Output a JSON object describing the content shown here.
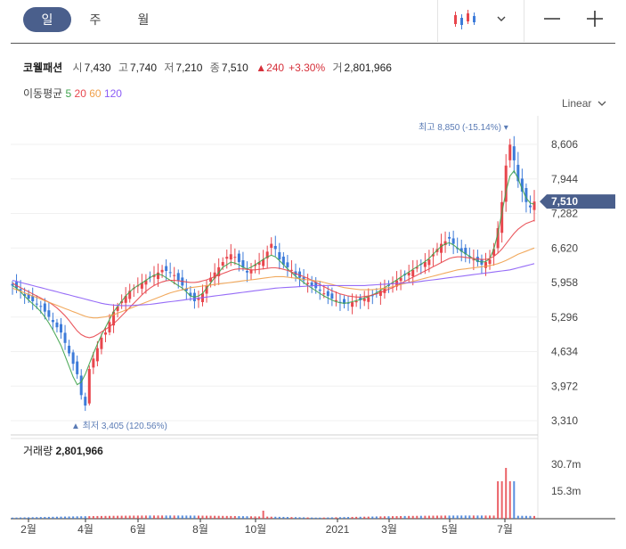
{
  "toolbar": {
    "periods": [
      "일",
      "주",
      "월"
    ],
    "active_period": "일",
    "icons": [
      "candlestick-icon",
      "chevron-down-icon",
      "zoom-out-icon",
      "zoom-in-icon"
    ]
  },
  "quote": {
    "name": "코웰패션",
    "open_label": "시",
    "open": "7,430",
    "high_label": "고",
    "high": "7,740",
    "low_label": "저",
    "low": "7,210",
    "close_label": "종",
    "close": "7,510",
    "change": "▲240",
    "change_pct": "+3.30%",
    "volume_label": "거",
    "volume": "2,801,966"
  },
  "ma": {
    "label": "이동평균",
    "periods": [
      "5",
      "20",
      "60",
      "120"
    ],
    "colors": [
      "#3fa34d",
      "#e8464d",
      "#f0a04b",
      "#8b5cf6"
    ]
  },
  "scale_label": "Linear",
  "chart_data": {
    "type": "candlestick",
    "price_ticks": [
      "8,606",
      "7,944",
      "7,282",
      "6,620",
      "5,958",
      "5,296",
      "4,634",
      "3,972",
      "3,310"
    ],
    "y_range": [
      3100,
      9000
    ],
    "x_ticks": [
      "2월",
      "4월",
      "6월",
      "8월",
      "10월",
      "2021",
      "3월",
      "5월",
      "7월"
    ],
    "current_price": "7,510",
    "max_label": "최고 8,850 (-15.14%)",
    "min_label": "최저 3,405 (120.56%)",
    "volume_title": "거래량",
    "volume_value": "2,801,966",
    "volume_ticks": [
      "30.7m",
      "15.3m"
    ],
    "up_color": "#e8464d",
    "down_color": "#3d7bd9",
    "close_series": [
      5900,
      5850,
      5800,
      5700,
      5650,
      5600,
      5550,
      5500,
      5400,
      5300,
      5200,
      5100,
      5000,
      4800,
      4600,
      4400,
      4200,
      3800,
      3600,
      4300,
      4500,
      4700,
      4900,
      5000,
      5200,
      5400,
      5500,
      5600,
      5700,
      5800,
      5850,
      5900,
      5950,
      6000,
      6050,
      6100,
      6150,
      6200,
      6180,
      6150,
      6100,
      6000,
      5900,
      5800,
      5700,
      5600,
      5650,
      5750,
      5900,
      6050,
      6150,
      6250,
      6350,
      6450,
      6500,
      6450,
      6350,
      6250,
      6150,
      6200,
      6300,
      6350,
      6400,
      6550,
      6700,
      6600,
      6400,
      6300,
      6250,
      6200,
      6100,
      6050,
      6000,
      5950,
      5900,
      5850,
      5800,
      5750,
      5700,
      5650,
      5620,
      5580,
      5550,
      5560,
      5580,
      5600,
      5620,
      5650,
      5680,
      5700,
      5750,
      5800,
      5850,
      5900,
      5950,
      6000,
      6050,
      6100,
      6150,
      6200,
      6250,
      6300,
      6350,
      6400,
      6500,
      6600,
      6700,
      6750,
      6800,
      6700,
      6600,
      6550,
      6500,
      6450,
      6400,
      6350,
      6300,
      6350,
      6400,
      6600,
      7000,
      7500,
      8200,
      8600,
      8300,
      7900,
      7700,
      7500,
      7400,
      7510
    ],
    "ma5": [
      5900,
      5850,
      5780,
      5700,
      5620,
      5550,
      5480,
      5400,
      5300,
      5180,
      5050,
      4900,
      4750,
      4550,
      4350,
      4150,
      4000,
      4050,
      4200,
      4400,
      4600,
      4780,
      4950,
      5100,
      5250,
      5400,
      5500,
      5600,
      5700,
      5780,
      5850,
      5900,
      5950,
      6000,
      6050,
      6100,
      6120,
      6100,
      6050,
      6000,
      5950,
      5900,
      5850,
      5780,
      5700,
      5680,
      5700,
      5750,
      5850,
      5950,
      6050,
      6150,
      6250,
      6300,
      6350,
      6330,
      6300,
      6250,
      6220,
      6250,
      6300,
      6350,
      6400,
      6450,
      6480,
      6450,
      6380,
      6300,
      6220,
      6150,
      6080,
      6020,
      5960,
      5900,
      5850,
      5800,
      5750,
      5700,
      5660,
      5620,
      5590,
      5570,
      5560,
      5570,
      5590,
      5610,
      5630,
      5660,
      5690,
      5720,
      5760,
      5810,
      5860,
      5910,
      5960,
      6010,
      6060,
      6110,
      6160,
      6210,
      6260,
      6310,
      6360,
      6420,
      6500,
      6580,
      6650,
      6700,
      6720,
      6680,
      6620,
      6560,
      6510,
      6460,
      6410,
      6370,
      6350,
      6360,
      6420,
      6600,
      6900,
      7300,
      7700,
      8000,
      8100,
      7950,
      7750,
      7580,
      7480,
      7460
    ],
    "ma20": [
      5950,
      5900,
      5860,
      5820,
      5780,
      5740,
      5700,
      5660,
      5620,
      5580,
      5530,
      5470,
      5400,
      5320,
      5230,
      5130,
      5030,
      4960,
      4920,
      4900,
      4920,
      4960,
      5010,
      5060,
      5110,
      5170,
      5240,
      5320,
      5400,
      5480,
      5560,
      5640,
      5720,
      5790,
      5850,
      5900,
      5940,
      5970,
      5990,
      6000,
      6000,
      5990,
      5980,
      5970,
      5960,
      5960,
      5970,
      5990,
      6010,
      6040,
      6070,
      6100,
      6130,
      6160,
      6190,
      6210,
      6220,
      6220,
      6210,
      6200,
      6200,
      6210,
      6220,
      6230,
      6240,
      6240,
      6230,
      6210,
      6190,
      6160,
      6130,
      6100,
      6070,
      6040,
      6000,
      5960,
      5920,
      5880,
      5840,
      5800,
      5770,
      5740,
      5720,
      5700,
      5690,
      5680,
      5680,
      5690,
      5700,
      5720,
      5740,
      5770,
      5800,
      5830,
      5860,
      5900,
      5940,
      5980,
      6020,
      6060,
      6100,
      6140,
      6180,
      6220,
      6260,
      6300,
      6340,
      6380,
      6420,
      6440,
      6450,
      6450,
      6440,
      6430,
      6420,
      6410,
      6400,
      6400,
      6420,
      6460,
      6520,
      6600,
      6700,
      6800,
      6900,
      6980,
      7040,
      7090,
      7120,
      7150
    ],
    "ma60": [
      5850,
      5820,
      5790,
      5760,
      5730,
      5700,
      5670,
      5640,
      5610,
      5580,
      5550,
      5520,
      5490,
      5460,
      5430,
      5400,
      5370,
      5340,
      5310,
      5290,
      5280,
      5280,
      5290,
      5300,
      5320,
      5340,
      5370,
      5400,
      5430,
      5460,
      5490,
      5520,
      5550,
      5580,
      5610,
      5640,
      5670,
      5700,
      5730,
      5760,
      5780,
      5800,
      5820,
      5840,
      5860,
      5870,
      5880,
      5890,
      5900,
      5910,
      5920,
      5930,
      5940,
      5950,
      5960,
      5970,
      5980,
      5990,
      6000,
      6010,
      6020,
      6030,
      6040,
      6050,
      6060,
      6070,
      6070,
      6070,
      6060,
      6050,
      6040,
      6030,
      6020,
      6010,
      6000,
      5990,
      5980,
      5960,
      5940,
      5920,
      5900,
      5880,
      5860,
      5850,
      5840,
      5830,
      5820,
      5820,
      5820,
      5820,
      5830,
      5840,
      5850,
      5860,
      5880,
      5900,
      5920,
      5940,
      5960,
      5980,
      6000,
      6020,
      6040,
      6060,
      6080,
      6100,
      6120,
      6140,
      6160,
      6180,
      6200,
      6210,
      6220,
      6230,
      6240,
      6250,
      6260,
      6270,
      6280,
      6300,
      6320,
      6350,
      6380,
      6420,
      6460,
      6500,
      6530,
      6560,
      6590,
      6620
    ],
    "ma120": [
      6000,
      5980,
      5960,
      5940,
      5920,
      5900,
      5880,
      5860,
      5840,
      5820,
      5800,
      5780,
      5760,
      5740,
      5720,
      5700,
      5680,
      5660,
      5640,
      5620,
      5600,
      5580,
      5560,
      5545,
      5535,
      5525,
      5520,
      5515,
      5515,
      5515,
      5520,
      5525,
      5530,
      5535,
      5540,
      5550,
      5560,
      5570,
      5580,
      5590,
      5600,
      5610,
      5620,
      5630,
      5640,
      5650,
      5660,
      5670,
      5680,
      5690,
      5700,
      5710,
      5720,
      5730,
      5740,
      5750,
      5760,
      5770,
      5780,
      5790,
      5800,
      5810,
      5820,
      5830,
      5840,
      5850,
      5855,
      5860,
      5865,
      5870,
      5875,
      5880,
      5885,
      5890,
      5895,
      5900,
      5900,
      5900,
      5900,
      5900,
      5900,
      5900,
      5900,
      5900,
      5900,
      5900,
      5900,
      5900,
      5905,
      5910,
      5915,
      5920,
      5925,
      5930,
      5935,
      5940,
      5945,
      5950,
      5955,
      5960,
      5970,
      5980,
      5990,
      6000,
      6010,
      6020,
      6030,
      6040,
      6050,
      6060,
      6070,
      6080,
      6090,
      6100,
      6110,
      6120,
      6130,
      6140,
      6150,
      6160,
      6170,
      6180,
      6190,
      6200,
      6220,
      6240,
      6260,
      6280,
      6300,
      6320
    ]
  }
}
